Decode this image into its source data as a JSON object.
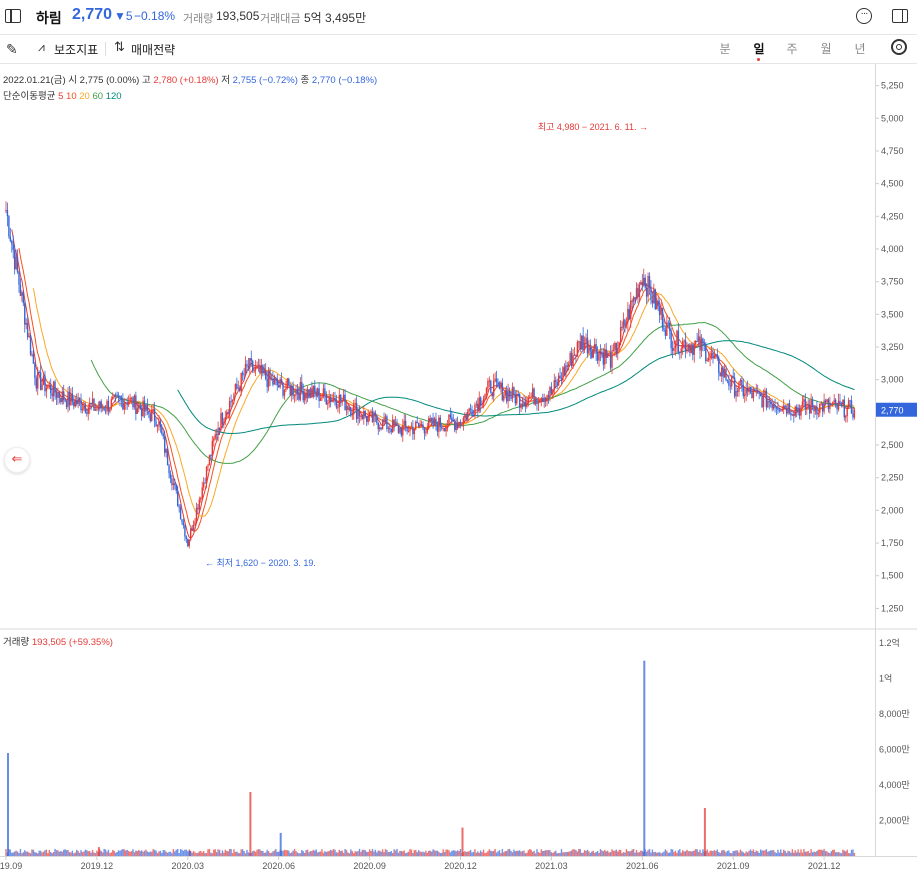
{
  "header": {
    "stock_name": "하림",
    "price": "2,770",
    "change": "▼5",
    "change_pct": "−0.18%",
    "volume_label": "거래량",
    "volume_value": "193,505",
    "amount_label": "거래대금",
    "amount_value": "5억 3,495만"
  },
  "toolbar": {
    "indicator_label": "보조지표",
    "strategy_label": "매매전략",
    "periods": [
      "분",
      "일",
      "주",
      "월",
      "년"
    ],
    "active_period": "일"
  },
  "info": {
    "date": "2022.01.21(금)",
    "open_label": "시",
    "open": "2,775 (0.00%)",
    "high_label": "고",
    "high": "2,780 (+0.18%)",
    "low_label": "저",
    "low": "2,755 (−0.72%)",
    "close_label": "종",
    "close": "2,770 (−0.18%)",
    "ma_label": "단순이동평균",
    "ma_periods": [
      "5",
      "10",
      "20",
      "60",
      "120"
    ],
    "volume_label": "거래량",
    "volume_value": "193,505 (+59.35%)"
  },
  "colors": {
    "up": "#e53935",
    "down": "#3366dd",
    "ma5": "#e53935",
    "ma10": "#f4511e",
    "ma20": "#f9a825",
    "ma60": "#43a047",
    "ma120": "#00897b"
  },
  "chart_data": [
    {
      "type": "line",
      "title": "",
      "x": [
        "2019.09",
        "2019.10",
        "2019.11",
        "2019.12",
        "2020.01",
        "2020.02",
        "2020.03",
        "2020.04",
        "2020.05",
        "2020.06",
        "2020.07",
        "2020.08",
        "2020.09",
        "2020.10",
        "2020.11",
        "2020.12",
        "2021.01",
        "2021.02",
        "2021.03",
        "2021.04",
        "2021.05",
        "2021.06",
        "2021.07",
        "2021.08",
        "2021.09",
        "2021.10",
        "2021.11",
        "2021.12",
        "2022.01"
      ],
      "series": [
        {
          "name": "price",
          "values": [
            4300,
            3000,
            2850,
            2780,
            2850,
            2700,
            1750,
            2650,
            3100,
            2950,
            2900,
            2850,
            2700,
            2620,
            2650,
            2680,
            2950,
            2850,
            2900,
            3300,
            3150,
            3800,
            3300,
            3250,
            2950,
            2850,
            2780,
            2800,
            2770
          ]
        }
      ],
      "ylim": [
        1100,
        5400
      ],
      "y_ticks": [
        "5,250",
        "5,000",
        "4,750",
        "4,500",
        "4,250",
        "4,000",
        "3,750",
        "3,500",
        "3,250",
        "3,000",
        "2,750",
        "2,500",
        "2,250",
        "2,000",
        "1,750",
        "1,500",
        "1,250"
      ],
      "current_price_label": "2,770",
      "annotations": [
        "최고 4,980 − 2021. 6. 11. →",
        "← 최저 1,620 − 2020. 3. 19."
      ],
      "x_tick_labels": [
        "2019.09",
        "2019.12",
        "2020.03",
        "2020.06",
        "2020.09",
        "2020.12",
        "2021.03",
        "2021.06",
        "2021.09",
        "2021.12"
      ]
    },
    {
      "type": "bar",
      "title": "거래량",
      "x": [
        "2019.09",
        "2019.12",
        "2020.03",
        "2020.05",
        "2020.06",
        "2020.12",
        "2021.06",
        "2021.08"
      ],
      "values": [
        58000000,
        5000000,
        3000000,
        36000000,
        13000000,
        16000000,
        110000000,
        27000000
      ],
      "y_ticks": [
        "1.2억",
        "1억",
        "8,000만",
        "6,000만",
        "4,000만",
        "2,000만"
      ]
    }
  ]
}
